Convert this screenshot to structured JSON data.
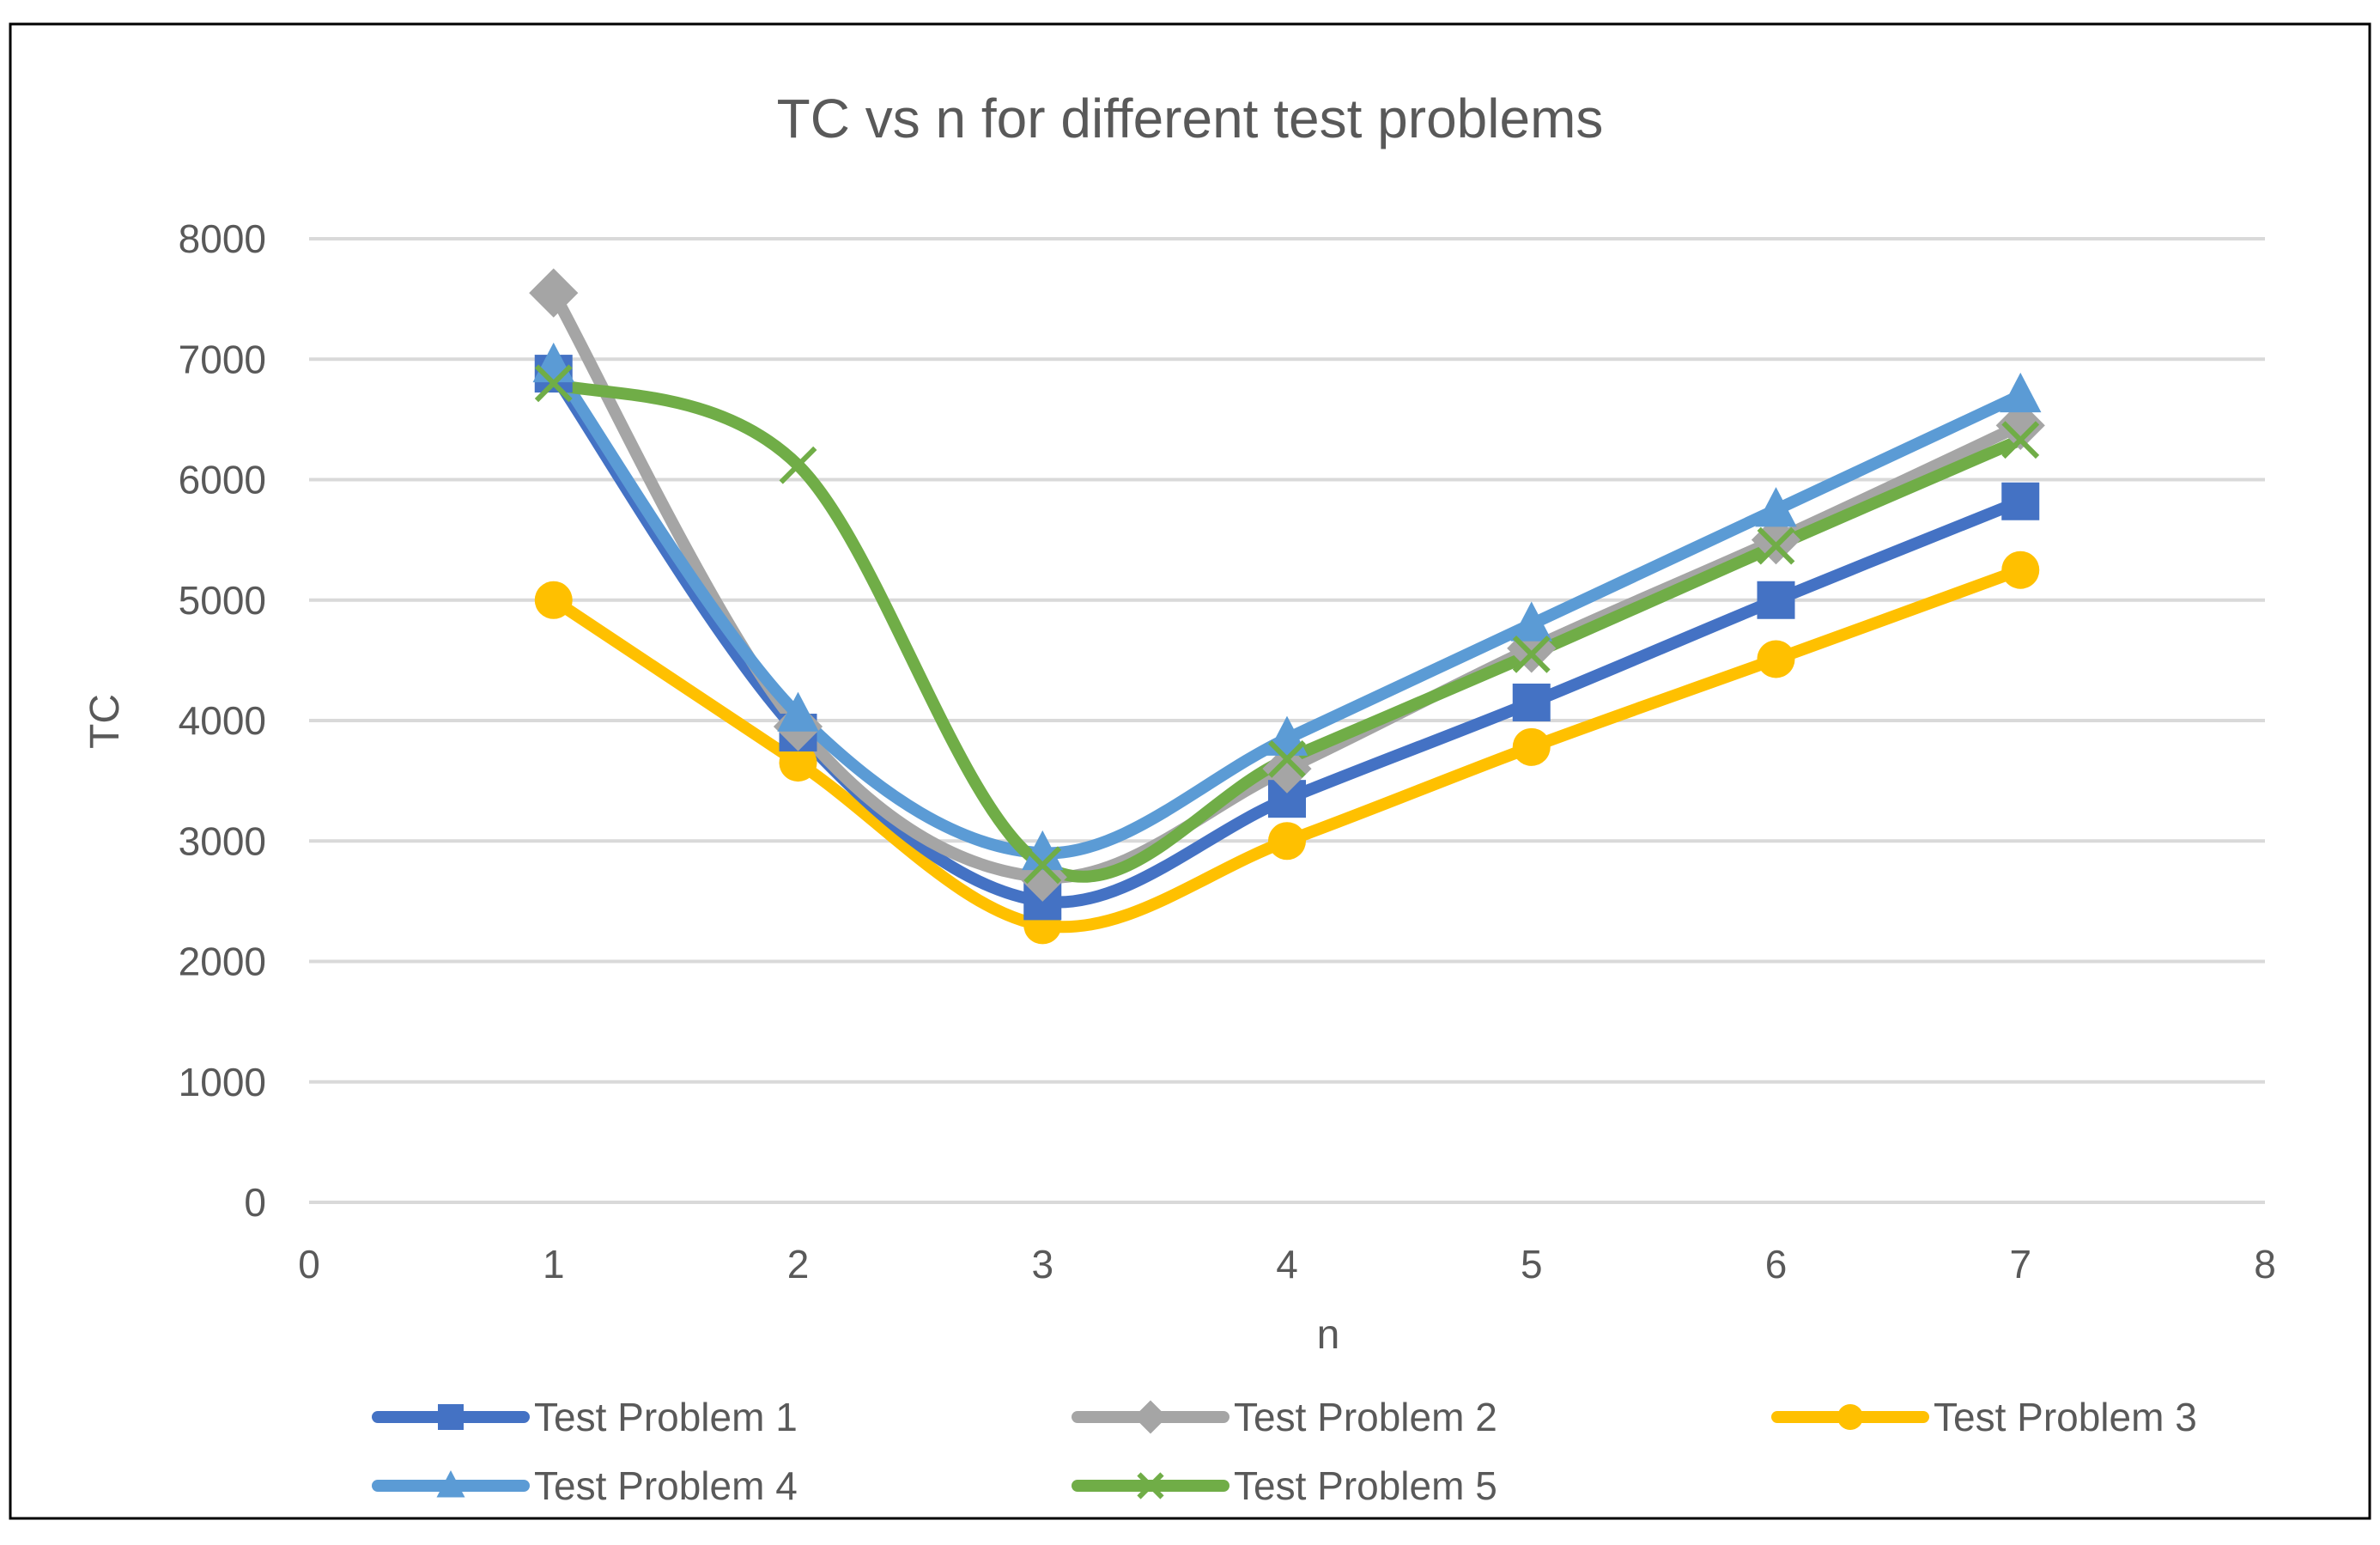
{
  "chart_data": {
    "type": "line",
    "title": "TC vs n for different test problems",
    "xlabel": "n",
    "ylabel": "TC",
    "xlim": [
      0,
      8
    ],
    "ylim": [
      0,
      8000
    ],
    "x_ticks": [
      "0",
      "1",
      "2",
      "3",
      "4",
      "5",
      "6",
      "7",
      "8"
    ],
    "y_ticks": [
      "0",
      "1000",
      "2000",
      "3000",
      "4000",
      "5000",
      "6000",
      "7000",
      "8000"
    ],
    "grid": "horizontal",
    "smooth": true,
    "legend_position": "bottom",
    "x": [
      1,
      2,
      3,
      4,
      5,
      6,
      7
    ],
    "series": [
      {
        "name": "Test Problem 1",
        "color": "#4472C4",
        "marker": "square",
        "values": [
          6880,
          3900,
          2500,
          3350,
          4150,
          5000,
          5820
        ]
      },
      {
        "name": "Test Problem 2",
        "color": "#A5A5A5",
        "marker": "diamond",
        "values": [
          7550,
          3950,
          2700,
          3600,
          4600,
          5500,
          6450
        ]
      },
      {
        "name": "Test Problem 3",
        "color": "#FFC000",
        "marker": "circle",
        "values": [
          5000,
          3650,
          2300,
          3000,
          3780,
          4510,
          5250
        ]
      },
      {
        "name": "Test Problem 4",
        "color": "#5B9BD5",
        "marker": "triangle",
        "values": [
          6950,
          4050,
          2900,
          3850,
          4800,
          5750,
          6700
        ]
      },
      {
        "name": "Test Problem 5",
        "color": "#70AD47",
        "marker": "cross",
        "values": [
          6800,
          6120,
          2800,
          3680,
          4550,
          5450,
          6330
        ]
      }
    ]
  }
}
